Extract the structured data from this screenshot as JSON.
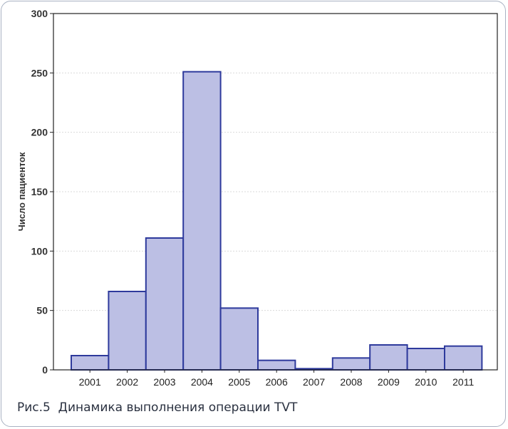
{
  "caption": "Рис.5  Динамика выполнения операции TVT",
  "chart_data": {
    "type": "bar",
    "ylabel": "Число пациенток",
    "xlabel": "",
    "categories": [
      "2001",
      "2002",
      "2003",
      "2004",
      "2005",
      "2006",
      "2007",
      "2008",
      "2009",
      "2010",
      "2011"
    ],
    "values": [
      12,
      66,
      111,
      251,
      52,
      8,
      1,
      10,
      21,
      18,
      20
    ],
    "ylim": [
      0,
      300
    ],
    "yticks": [
      0,
      50,
      100,
      150,
      200,
      250,
      300
    ],
    "grid": true,
    "colors": {
      "bar_fill": "#bcbfe4",
      "bar_stroke": "#2e3a9c",
      "grid": "#d9d9d9",
      "axis": "#222222"
    }
  }
}
